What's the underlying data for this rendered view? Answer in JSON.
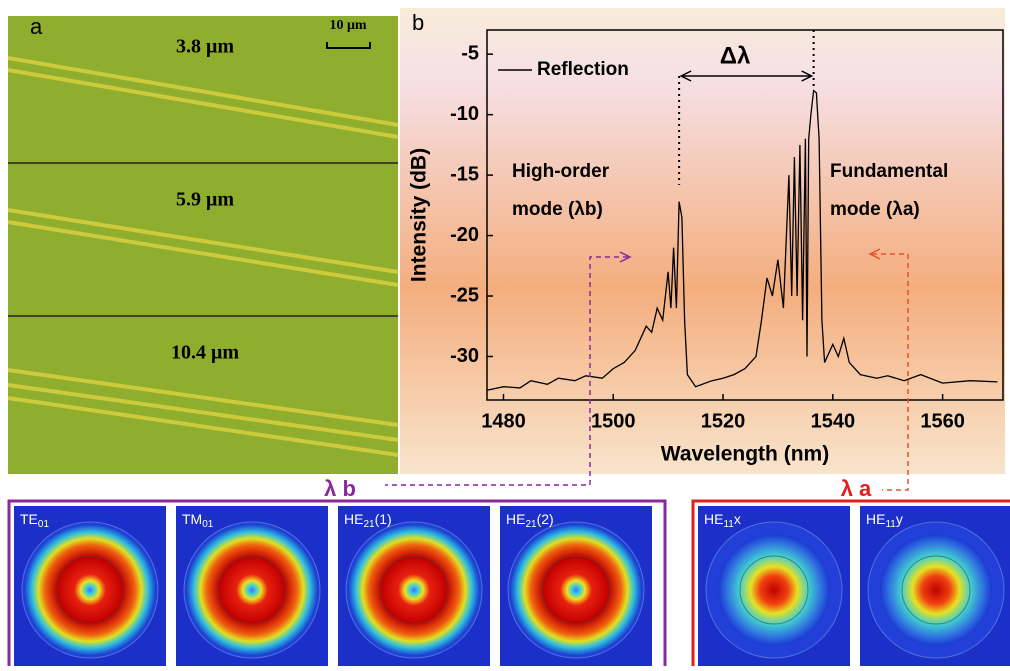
{
  "panel_a": {
    "label": "a",
    "scale_bar": "10 μm",
    "widths": [
      "3.8 μm",
      "5.9 μm",
      "10.4 μm"
    ]
  },
  "chart_data": {
    "type": "line",
    "panel_label": "b",
    "x_label": "Wavelength (nm)",
    "y_label": "Intensity (dB)",
    "x": [
      1477,
      1480,
      1483,
      1485,
      1488,
      1490,
      1493,
      1495,
      1498,
      1500,
      1502,
      1504,
      1505,
      1506,
      1507,
      1508,
      1509,
      1510,
      1510.5,
      1511,
      1511.5,
      1512,
      1512.5,
      1513,
      1513.5,
      1515,
      1518,
      1520,
      1522,
      1524,
      1526,
      1527,
      1528,
      1529,
      1530,
      1531,
      1532,
      1532.5,
      1533,
      1533.5,
      1534,
      1534.5,
      1535,
      1535.3,
      1535.6,
      1536,
      1536.5,
      1537,
      1537.5,
      1538,
      1538.5,
      1539,
      1540,
      1541,
      1542,
      1543,
      1545,
      1548,
      1550,
      1553,
      1556,
      1560,
      1565,
      1570
    ],
    "series": [
      {
        "name": "Reflection",
        "color": "#000000",
        "values": [
          -32.8,
          -32.5,
          -32.6,
          -32.0,
          -32.3,
          -31.8,
          -32.0,
          -31.6,
          -31.8,
          -31.0,
          -30.5,
          -29.5,
          -28.5,
          -27.5,
          -28.0,
          -26.0,
          -27.0,
          -23.0,
          -26.0,
          -21.0,
          -26.0,
          -17.2,
          -18.5,
          -27.0,
          -31.5,
          -32.5,
          -32.0,
          -31.8,
          -31.5,
          -31.0,
          -30.0,
          -27.0,
          -23.5,
          -25.0,
          -22.0,
          -26.0,
          -15.0,
          -25.0,
          -13.5,
          -25.0,
          -12.5,
          -27.0,
          -12.0,
          -30.0,
          -12.0,
          -10.0,
          -8.0,
          -8.2,
          -12.0,
          -27.0,
          -30.5,
          -30.0,
          -29.0,
          -30.0,
          -28.5,
          -30.5,
          -31.5,
          -31.8,
          -31.6,
          -32.0,
          -31.5,
          -32.2,
          -32.0,
          -32.1
        ]
      }
    ],
    "xlim": [
      1477,
      1571
    ],
    "ylim": [
      -33.6,
      -3
    ],
    "xticks": [
      1480,
      1500,
      1520,
      1540,
      1560
    ],
    "yticks": [
      -5,
      -10,
      -15,
      -20,
      -25,
      -30
    ],
    "annotations": {
      "delta": "Δλ",
      "high_order": [
        "High-order",
        "mode (λb)"
      ],
      "fundamental": [
        "Fundamental",
        "mode (λa)"
      ]
    }
  },
  "modes": {
    "high_order": {
      "label": "λ b",
      "color": "#8a2a9a",
      "fields": [
        {
          "base": "TE",
          "sub": "01",
          "suffix": ""
        },
        {
          "base": "TM",
          "sub": "01",
          "suffix": ""
        },
        {
          "base": "HE",
          "sub": "21",
          "suffix": "(1)"
        },
        {
          "base": "HE",
          "sub": "21",
          "suffix": "(2)"
        }
      ]
    },
    "fundamental": {
      "label": "λ a",
      "color": "#e02020",
      "fields": [
        {
          "base": "HE",
          "sub": "11",
          "suffix": "x"
        },
        {
          "base": "HE",
          "sub": "11",
          "suffix": "y"
        }
      ]
    }
  }
}
